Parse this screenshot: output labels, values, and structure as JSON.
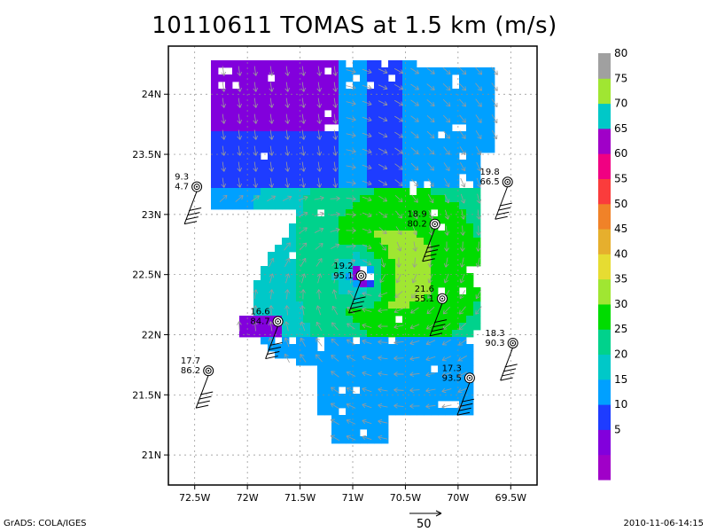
{
  "title": "10110611 TOMAS at 1.5 km (m/s)",
  "footer": {
    "left": "GrADS: COLA/IGES",
    "right": "2010-11-06-14:15",
    "reference_vector_label": "50"
  },
  "chart_data": {
    "type": "heatmap",
    "title": "10110611 TOMAS at 1.5 km (m/s)",
    "xlabel": "",
    "ylabel": "",
    "xlim": [
      -72.75,
      -69.25
    ],
    "ylim": [
      20.75,
      24.4
    ],
    "x_ticks": [
      {
        "value": -72.5,
        "label": "72.5W"
      },
      {
        "value": -72.0,
        "label": "72W"
      },
      {
        "value": -71.5,
        "label": "71.5W"
      },
      {
        "value": -71.0,
        "label": "71W"
      },
      {
        "value": -70.5,
        "label": "70.5W"
      },
      {
        "value": -70.0,
        "label": "70W"
      },
      {
        "value": -69.5,
        "label": "69.5W"
      }
    ],
    "y_ticks": [
      {
        "value": 21.0,
        "label": "21N"
      },
      {
        "value": 21.5,
        "label": "21.5N"
      },
      {
        "value": 22.0,
        "label": "22N"
      },
      {
        "value": 22.5,
        "label": "22.5N"
      },
      {
        "value": 23.0,
        "label": "23N"
      },
      {
        "value": 23.5,
        "label": "23.5N"
      },
      {
        "value": 24.0,
        "label": "24N"
      }
    ],
    "grid": true,
    "colorbar": {
      "levels": [
        {
          "label": "",
          "color": "#a000c8"
        },
        {
          "label": "5",
          "color": "#8200dc"
        },
        {
          "label": "10",
          "color": "#1e3cff"
        },
        {
          "label": "15",
          "color": "#00a0ff"
        },
        {
          "label": "20",
          "color": "#00c8c8"
        },
        {
          "label": "25",
          "color": "#00d28c"
        },
        {
          "label": "30",
          "color": "#00dc00"
        },
        {
          "label": "35",
          "color": "#a0e632"
        },
        {
          "label": "40",
          "color": "#e6dc32"
        },
        {
          "label": "45",
          "color": "#e6af2d"
        },
        {
          "label": "50",
          "color": "#f08228"
        },
        {
          "label": "55",
          "color": "#fa3c3c"
        },
        {
          "label": "60",
          "color": "#f00082"
        },
        {
          "label": "65",
          "color": "#a000c8"
        },
        {
          "label": "70",
          "color": "#00c8c8"
        },
        {
          "label": "75",
          "color": "#a0e632"
        },
        {
          "label": "80",
          "color": "#a0a0a0"
        }
      ]
    },
    "storm_center": {
      "lon": -70.88,
      "lat": 22.5,
      "eye_radius_deg": 0.1
    },
    "stations": [
      {
        "lon": -72.48,
        "lat": 23.23,
        "wind": "9.3",
        "pressure": "4.7"
      },
      {
        "lon": -69.53,
        "lat": 23.27,
        "wind": "19.8",
        "pressure": "66.5"
      },
      {
        "lon": -70.22,
        "lat": 22.92,
        "wind": "18.9",
        "pressure": "80.2"
      },
      {
        "lon": -70.92,
        "lat": 22.49,
        "wind": "19.2",
        "pressure": "95.1"
      },
      {
        "lon": -70.15,
        "lat": 22.3,
        "wind": "21.6",
        "pressure": "55.1"
      },
      {
        "lon": -71.71,
        "lat": 22.11,
        "wind": "16.6",
        "pressure": "84.7"
      },
      {
        "lon": -69.48,
        "lat": 21.93,
        "wind": "18.3",
        "pressure": "90.3"
      },
      {
        "lon": -72.37,
        "lat": 21.7,
        "wind": "17.7",
        "pressure": "86.2"
      },
      {
        "lon": -69.89,
        "lat": 21.64,
        "wind": "17.3",
        "pressure": "93.5"
      }
    ]
  }
}
